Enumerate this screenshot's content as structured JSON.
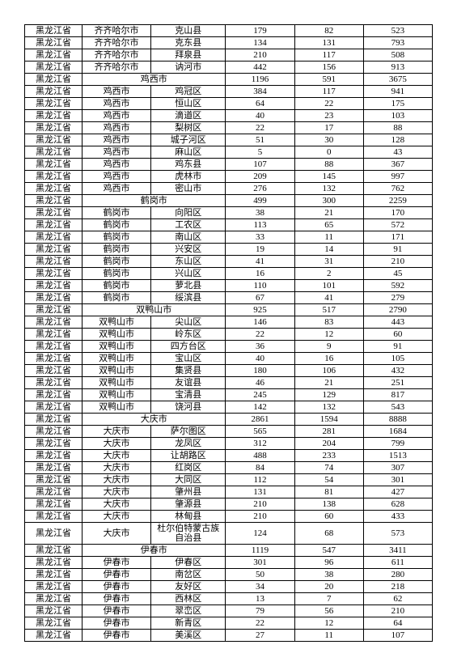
{
  "table": {
    "rows": [
      {
        "c1": "黑龙江省",
        "c2": "齐齐哈尔市",
        "c3": "克山县",
        "c4": "179",
        "c5": "82",
        "c6": "523"
      },
      {
        "c1": "黑龙江省",
        "c2": "齐齐哈尔市",
        "c3": "克东县",
        "c4": "134",
        "c5": "131",
        "c6": "793"
      },
      {
        "c1": "黑龙江省",
        "c2": "齐齐哈尔市",
        "c3": "拜泉县",
        "c4": "210",
        "c5": "117",
        "c6": "508"
      },
      {
        "c1": "黑龙江省",
        "c2": "齐齐哈尔市",
        "c3": "讷河市",
        "c4": "442",
        "c5": "156",
        "c6": "913"
      },
      {
        "c1": "黑龙江省",
        "span23": "鸡西市",
        "c4": "1196",
        "c5": "591",
        "c6": "3675"
      },
      {
        "c1": "黑龙江省",
        "c2": "鸡西市",
        "c3": "鸡冠区",
        "c4": "384",
        "c5": "117",
        "c6": "941"
      },
      {
        "c1": "黑龙江省",
        "c2": "鸡西市",
        "c3": "恒山区",
        "c4": "64",
        "c5": "22",
        "c6": "175"
      },
      {
        "c1": "黑龙江省",
        "c2": "鸡西市",
        "c3": "滴道区",
        "c4": "40",
        "c5": "23",
        "c6": "103"
      },
      {
        "c1": "黑龙江省",
        "c2": "鸡西市",
        "c3": "梨树区",
        "c4": "22",
        "c5": "17",
        "c6": "88"
      },
      {
        "c1": "黑龙江省",
        "c2": "鸡西市",
        "c3": "城子河区",
        "c4": "51",
        "c5": "30",
        "c6": "128"
      },
      {
        "c1": "黑龙江省",
        "c2": "鸡西市",
        "c3": "麻山区",
        "c4": "5",
        "c5": "0",
        "c6": "43"
      },
      {
        "c1": "黑龙江省",
        "c2": "鸡西市",
        "c3": "鸡东县",
        "c4": "107",
        "c5": "88",
        "c6": "367"
      },
      {
        "c1": "黑龙江省",
        "c2": "鸡西市",
        "c3": "虎林市",
        "c4": "209",
        "c5": "145",
        "c6": "997"
      },
      {
        "c1": "黑龙江省",
        "c2": "鸡西市",
        "c3": "密山市",
        "c4": "276",
        "c5": "132",
        "c6": "762"
      },
      {
        "c1": "黑龙江省",
        "span23": "鹤岗市",
        "c4": "499",
        "c5": "300",
        "c6": "2259"
      },
      {
        "c1": "黑龙江省",
        "c2": "鹤岗市",
        "c3": "向阳区",
        "c4": "38",
        "c5": "21",
        "c6": "170"
      },
      {
        "c1": "黑龙江省",
        "c2": "鹤岗市",
        "c3": "工农区",
        "c4": "113",
        "c5": "65",
        "c6": "572"
      },
      {
        "c1": "黑龙江省",
        "c2": "鹤岗市",
        "c3": "南山区",
        "c4": "33",
        "c5": "11",
        "c6": "171"
      },
      {
        "c1": "黑龙江省",
        "c2": "鹤岗市",
        "c3": "兴安区",
        "c4": "19",
        "c5": "14",
        "c6": "91"
      },
      {
        "c1": "黑龙江省",
        "c2": "鹤岗市",
        "c3": "东山区",
        "c4": "41",
        "c5": "31",
        "c6": "210"
      },
      {
        "c1": "黑龙江省",
        "c2": "鹤岗市",
        "c3": "兴山区",
        "c4": "16",
        "c5": "2",
        "c6": "45"
      },
      {
        "c1": "黑龙江省",
        "c2": "鹤岗市",
        "c3": "萝北县",
        "c4": "110",
        "c5": "101",
        "c6": "592"
      },
      {
        "c1": "黑龙江省",
        "c2": "鹤岗市",
        "c3": "绥滨县",
        "c4": "67",
        "c5": "41",
        "c6": "279"
      },
      {
        "c1": "黑龙江省",
        "span23": "双鸭山市",
        "c4": "925",
        "c5": "517",
        "c6": "2790"
      },
      {
        "c1": "黑龙江省",
        "c2": "双鸭山市",
        "c3": "尖山区",
        "c4": "146",
        "c5": "83",
        "c6": "443"
      },
      {
        "c1": "黑龙江省",
        "c2": "双鸭山市",
        "c3": "岭东区",
        "c4": "22",
        "c5": "12",
        "c6": "60"
      },
      {
        "c1": "黑龙江省",
        "c2": "双鸭山市",
        "c3": "四方台区",
        "c4": "36",
        "c5": "9",
        "c6": "91"
      },
      {
        "c1": "黑龙江省",
        "c2": "双鸭山市",
        "c3": "宝山区",
        "c4": "40",
        "c5": "16",
        "c6": "105"
      },
      {
        "c1": "黑龙江省",
        "c2": "双鸭山市",
        "c3": "集贤县",
        "c4": "180",
        "c5": "106",
        "c6": "432"
      },
      {
        "c1": "黑龙江省",
        "c2": "双鸭山市",
        "c3": "友谊县",
        "c4": "46",
        "c5": "21",
        "c6": "251"
      },
      {
        "c1": "黑龙江省",
        "c2": "双鸭山市",
        "c3": "宝清县",
        "c4": "245",
        "c5": "129",
        "c6": "817"
      },
      {
        "c1": "黑龙江省",
        "c2": "双鸭山市",
        "c3": "饶河县",
        "c4": "142",
        "c5": "132",
        "c6": "543"
      },
      {
        "c1": "黑龙江省",
        "span23": "大庆市",
        "c4": "2861",
        "c5": "1594",
        "c6": "8888"
      },
      {
        "c1": "黑龙江省",
        "c2": "大庆市",
        "c3": "萨尔图区",
        "c4": "565",
        "c5": "281",
        "c6": "1684"
      },
      {
        "c1": "黑龙江省",
        "c2": "大庆市",
        "c3": "龙凤区",
        "c4": "312",
        "c5": "204",
        "c6": "799"
      },
      {
        "c1": "黑龙江省",
        "c2": "大庆市",
        "c3": "让胡路区",
        "c4": "488",
        "c5": "233",
        "c6": "1513"
      },
      {
        "c1": "黑龙江省",
        "c2": "大庆市",
        "c3": "红岗区",
        "c4": "84",
        "c5": "74",
        "c6": "307"
      },
      {
        "c1": "黑龙江省",
        "c2": "大庆市",
        "c3": "大同区",
        "c4": "112",
        "c5": "54",
        "c6": "301"
      },
      {
        "c1": "黑龙江省",
        "c2": "大庆市",
        "c3": "肇州县",
        "c4": "131",
        "c5": "81",
        "c6": "427"
      },
      {
        "c1": "黑龙江省",
        "c2": "大庆市",
        "c3": "肇源县",
        "c4": "210",
        "c5": "138",
        "c6": "628"
      },
      {
        "c1": "黑龙江省",
        "c2": "大庆市",
        "c3": "林甸县",
        "c4": "210",
        "c5": "60",
        "c6": "433"
      },
      {
        "c1": "黑龙江省",
        "c2": "大庆市",
        "c3": "杜尔伯特蒙古族自治县",
        "c4": "124",
        "c5": "68",
        "c6": "573",
        "twoLine": true
      },
      {
        "c1": "黑龙江省",
        "span23": "伊春市",
        "c4": "1119",
        "c5": "547",
        "c6": "3411"
      },
      {
        "c1": "黑龙江省",
        "c2": "伊春市",
        "c3": "伊春区",
        "c4": "301",
        "c5": "96",
        "c6": "611"
      },
      {
        "c1": "黑龙江省",
        "c2": "伊春市",
        "c3": "南岔区",
        "c4": "50",
        "c5": "38",
        "c6": "280"
      },
      {
        "c1": "黑龙江省",
        "c2": "伊春市",
        "c3": "友好区",
        "c4": "34",
        "c5": "20",
        "c6": "218"
      },
      {
        "c1": "黑龙江省",
        "c2": "伊春市",
        "c3": "西林区",
        "c4": "13",
        "c5": "7",
        "c6": "62"
      },
      {
        "c1": "黑龙江省",
        "c2": "伊春市",
        "c3": "翠峦区",
        "c4": "79",
        "c5": "56",
        "c6": "210"
      },
      {
        "c1": "黑龙江省",
        "c2": "伊春市",
        "c3": "新青区",
        "c4": "22",
        "c5": "12",
        "c6": "64"
      },
      {
        "c1": "黑龙江省",
        "c2": "伊春市",
        "c3": "美溪区",
        "c4": "27",
        "c5": "11",
        "c6": "107"
      }
    ]
  }
}
